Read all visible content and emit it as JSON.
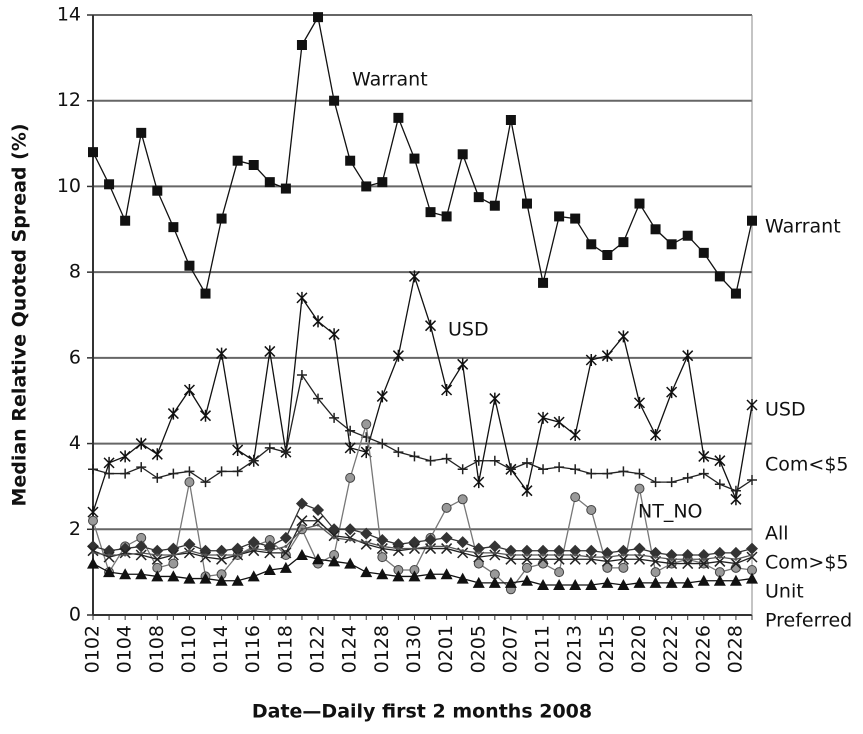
{
  "chart_data": {
    "type": "line",
    "ylabel": "Median Relative Quoted Spread (%)",
    "xlabel": "Date—Daily first 2 months 2008",
    "categories": [
      "0102",
      null,
      "0104",
      null,
      "0108",
      null,
      "0110",
      null,
      "0114",
      null,
      "0116",
      null,
      "0118",
      null,
      "0122",
      null,
      "0124",
      null,
      "0128",
      null,
      "0130",
      null,
      "0201",
      null,
      "0205",
      null,
      "0207",
      null,
      "0211",
      null,
      "0213",
      null,
      "0215",
      null,
      "0220",
      null,
      "0222",
      null,
      "0226",
      null,
      "0228",
      null
    ],
    "ylim": [
      0,
      14
    ],
    "yticks": [
      0,
      2,
      4,
      6,
      8,
      10,
      12,
      14
    ],
    "grid": true,
    "series": [
      {
        "name": "Warrant",
        "color": "#111111",
        "marker": "square",
        "values": [
          10.8,
          10.05,
          9.2,
          11.25,
          9.9,
          9.05,
          8.15,
          7.5,
          9.25,
          10.6,
          10.5,
          10.1,
          9.95,
          13.3,
          13.95,
          12.0,
          10.6,
          10.0,
          10.1,
          11.6,
          10.65,
          9.4,
          9.3,
          10.75,
          9.75,
          9.55,
          11.55,
          9.6,
          7.75,
          9.3,
          9.25,
          8.65,
          8.4,
          8.7,
          9.6,
          9.0,
          8.65,
          8.85,
          8.45,
          7.9,
          7.5,
          9.2
        ]
      },
      {
        "name": "USD",
        "color": "#111111",
        "marker": "asterisk",
        "values": [
          2.4,
          3.55,
          3.7,
          4.0,
          3.75,
          4.7,
          5.25,
          4.65,
          6.1,
          3.85,
          3.6,
          6.15,
          3.8,
          7.4,
          6.85,
          6.55,
          3.9,
          3.8,
          5.1,
          6.05,
          7.9,
          6.75,
          5.25,
          5.85,
          3.1,
          5.05,
          3.4,
          2.9,
          4.6,
          4.5,
          4.2,
          5.95,
          6.05,
          6.5,
          4.95,
          4.2,
          5.2,
          6.05,
          3.7,
          3.6,
          2.7,
          4.9
        ]
      },
      {
        "name": "Com<$5",
        "color": "#222222",
        "marker": "plus",
        "values": [
          3.4,
          3.3,
          3.3,
          3.45,
          3.2,
          3.3,
          3.35,
          3.1,
          3.35,
          3.35,
          3.6,
          3.9,
          3.8,
          5.6,
          5.05,
          4.6,
          4.3,
          4.15,
          4.0,
          3.8,
          3.7,
          3.6,
          3.65,
          3.4,
          3.6,
          3.6,
          3.4,
          3.55,
          3.4,
          3.45,
          3.4,
          3.3,
          3.3,
          3.35,
          3.3,
          3.1,
          3.1,
          3.2,
          3.3,
          3.05,
          2.9,
          3.15
        ]
      },
      {
        "name": "NT_NO",
        "color": "#777777",
        "marker": "circle",
        "values": [
          2.2,
          1.0,
          1.6,
          1.8,
          1.1,
          1.2,
          3.1,
          0.9,
          0.95,
          1.4,
          1.6,
          1.75,
          1.4,
          2.0,
          1.2,
          1.4,
          3.2,
          4.45,
          1.35,
          1.05,
          1.05,
          1.8,
          2.5,
          2.7,
          1.2,
          0.95,
          0.6,
          1.1,
          1.2,
          1.0,
          2.75,
          2.45,
          1.1,
          1.1,
          2.95,
          1.0,
          1.2,
          1.3,
          1.2,
          1.0,
          1.1,
          1.05
        ]
      },
      {
        "name": "All",
        "color": "#333333",
        "marker": "diamond",
        "values": [
          1.6,
          1.5,
          1.55,
          1.6,
          1.5,
          1.55,
          1.65,
          1.5,
          1.5,
          1.55,
          1.7,
          1.6,
          1.8,
          2.6,
          2.45,
          2.0,
          2.0,
          1.9,
          1.75,
          1.65,
          1.7,
          1.75,
          1.8,
          1.7,
          1.55,
          1.6,
          1.5,
          1.5,
          1.5,
          1.5,
          1.5,
          1.5,
          1.45,
          1.5,
          1.55,
          1.45,
          1.4,
          1.4,
          1.4,
          1.45,
          1.45,
          1.55
        ]
      },
      {
        "name": "Com>$5",
        "color": "#222222",
        "marker": "cross",
        "values": [
          1.5,
          1.35,
          1.45,
          1.4,
          1.3,
          1.4,
          1.45,
          1.35,
          1.3,
          1.4,
          1.5,
          1.45,
          1.45,
          2.2,
          2.2,
          1.85,
          1.8,
          1.65,
          1.55,
          1.5,
          1.55,
          1.55,
          1.55,
          1.45,
          1.35,
          1.4,
          1.3,
          1.3,
          1.3,
          1.3,
          1.3,
          1.3,
          1.25,
          1.3,
          1.3,
          1.25,
          1.2,
          1.2,
          1.2,
          1.25,
          1.2,
          1.35
        ]
      },
      {
        "name": "Unit",
        "color": "#111111",
        "marker": "triangle",
        "values": [
          1.2,
          1.0,
          0.95,
          0.95,
          0.9,
          0.9,
          0.85,
          0.85,
          0.8,
          0.8,
          0.9,
          1.05,
          1.1,
          1.4,
          1.3,
          1.25,
          1.2,
          1.0,
          0.95,
          0.9,
          0.9,
          0.95,
          0.95,
          0.85,
          0.75,
          0.75,
          0.75,
          0.8,
          0.7,
          0.7,
          0.7,
          0.7,
          0.75,
          0.7,
          0.75,
          0.75,
          0.75,
          0.75,
          0.8,
          0.8,
          0.8,
          0.85
        ]
      },
      {
        "name": "Preferred",
        "color": "#555555",
        "marker": "none",
        "values": [
          1.45,
          1.4,
          1.4,
          1.45,
          1.4,
          1.4,
          1.5,
          1.4,
          1.4,
          1.4,
          1.55,
          1.5,
          1.6,
          2.0,
          2.1,
          1.8,
          1.75,
          1.7,
          1.6,
          1.55,
          1.55,
          1.6,
          1.6,
          1.5,
          1.45,
          1.45,
          1.4,
          1.4,
          1.4,
          1.4,
          1.4,
          1.35,
          1.35,
          1.4,
          1.4,
          1.35,
          1.3,
          1.3,
          1.3,
          1.35,
          1.3,
          1.4
        ]
      }
    ]
  }
}
